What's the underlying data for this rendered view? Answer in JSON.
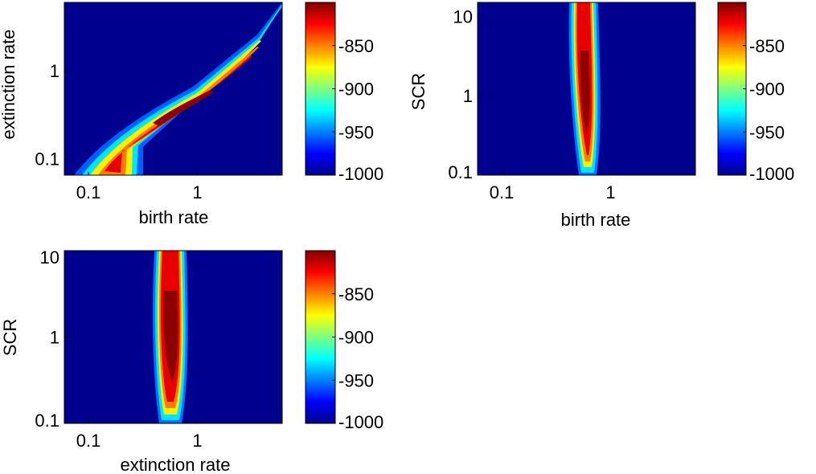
{
  "chart_data": [
    {
      "type": "heatmap",
      "xlabel": "birth rate",
      "ylabel": "extinction rate",
      "x_scale": "log",
      "y_scale": "log",
      "xlim": [
        0.06,
        6
      ],
      "ylim": [
        0.065,
        6
      ],
      "xticks": [
        {
          "value": 0.1,
          "label": "0.1"
        },
        {
          "value": 1,
          "label": "1"
        }
      ],
      "yticks": [
        {
          "value": 0.1,
          "label": "0.1"
        },
        {
          "value": 1,
          "label": "1"
        }
      ],
      "ridge": {
        "x": [
          0.12,
          0.2,
          0.35,
          0.6,
          1.0,
          2.0,
          5.5
        ],
        "y": [
          0.065,
          0.12,
          0.25,
          0.45,
          0.85,
          1.9,
          5.5
        ]
      },
      "colorbar": {
        "min": -1000,
        "max": -800,
        "ticks": [
          {
            "value": -850,
            "label": "-850"
          },
          {
            "value": -900,
            "label": "-900"
          },
          {
            "value": -950,
            "label": "-950"
          },
          {
            "value": -1000,
            "label": "-1000"
          }
        ]
      }
    },
    {
      "type": "heatmap",
      "xlabel": "birth rate",
      "ylabel": "SCR",
      "x_scale": "log",
      "y_scale": "log",
      "xlim": [
        0.06,
        6
      ],
      "ylim": [
        0.1,
        15
      ],
      "xticks": [
        {
          "value": 0.1,
          "label": "0.1"
        },
        {
          "value": 1,
          "label": "1"
        }
      ],
      "yticks": [
        {
          "value": 0.1,
          "label": "0.1"
        },
        {
          "value": 1,
          "label": "1"
        },
        {
          "value": 10,
          "label": "10"
        }
      ],
      "ridge_x": 0.75,
      "colorbar": {
        "min": -1000,
        "max": -800,
        "ticks": [
          {
            "value": -850,
            "label": "-850"
          },
          {
            "value": -900,
            "label": "-900"
          },
          {
            "value": -950,
            "label": "-950"
          },
          {
            "value": -1000,
            "label": "-1000"
          }
        ]
      }
    },
    {
      "type": "heatmap",
      "xlabel": "extinction rate",
      "ylabel": "SCR",
      "x_scale": "log",
      "y_scale": "log",
      "xlim": [
        0.06,
        6
      ],
      "ylim": [
        0.1,
        10
      ],
      "xticks": [
        {
          "value": 0.1,
          "label": "0.1"
        },
        {
          "value": 1,
          "label": "1"
        }
      ],
      "yticks": [
        {
          "value": 0.1,
          "label": "0.1"
        },
        {
          "value": 1,
          "label": "1"
        },
        {
          "value": 10,
          "label": "10"
        }
      ],
      "ridge_x": 0.6,
      "colorbar": {
        "min": -1000,
        "max": -800,
        "ticks": [
          {
            "value": -850,
            "label": "-850"
          },
          {
            "value": -900,
            "label": "-900"
          },
          {
            "value": -950,
            "label": "-950"
          },
          {
            "value": -1000,
            "label": "-1000"
          }
        ]
      }
    }
  ],
  "colors": {
    "colormap": "jet",
    "background": "#00008F",
    "frame": "#000000"
  }
}
